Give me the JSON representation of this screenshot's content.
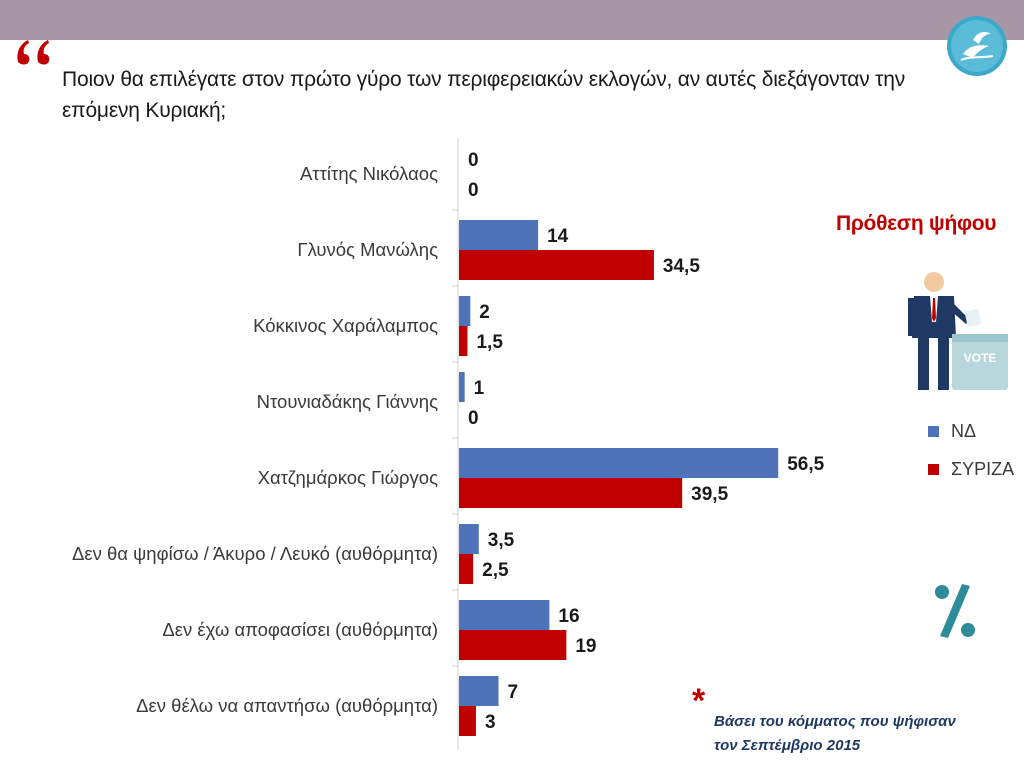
{
  "question": "Ποιον θα επιλέγατε στον πρώτο γύρο των περιφερειακών εκλογών, αν αυτές διεξάγονταν την επόμενη Κυριακή;",
  "intent_title": "Πρόθεση ψήφου",
  "footnote_line1": "Βάσει του κόμματος που ψήφισαν",
  "footnote_line2": "τον Σεπτέμβριο 2015",
  "footnote_star": "*",
  "vote_box_text": "VOTE",
  "colors": {
    "nd": "#4f73b8",
    "syriza": "#c00000",
    "topbar": "#a797a6"
  },
  "icons": [
    "quote-icon",
    "logo-icon",
    "voter-icon",
    "percent-icon"
  ],
  "chart_data": {
    "type": "bar",
    "orientation": "horizontal",
    "categories": [
      "Αττίτης Νικόλαος",
      "Γλυνός Μανώλης",
      "Κόκκινος Χαράλαμπος",
      "Ντουνιαδάκης Γιάννης",
      "Χατζημάρκος Γιώργος",
      "Δεν θα ψηφίσω / Άκυρο / Λευκό (αυθόρμητα)",
      "Δεν έχω αποφασίσει (αυθόρμητα)",
      "Δεν θέλω να απαντήσω (αυθόρμητα)"
    ],
    "series": [
      {
        "name": "ΝΔ",
        "color": "#4f73b8",
        "values": [
          0,
          14,
          2,
          1,
          56.5,
          3.5,
          16,
          7
        ],
        "labels": [
          "0",
          "14",
          "2",
          "1",
          "56,5",
          "3,5",
          "16",
          "7"
        ]
      },
      {
        "name": "ΣΥΡΙΖΑ",
        "color": "#c00000",
        "values": [
          0,
          34.5,
          1.5,
          0,
          39.5,
          2.5,
          19,
          3
        ],
        "labels": [
          "0",
          "34,5",
          "1,5",
          "0",
          "39,5",
          "2,5",
          "19",
          "3"
        ]
      }
    ],
    "legend": "right",
    "grid": false
  }
}
